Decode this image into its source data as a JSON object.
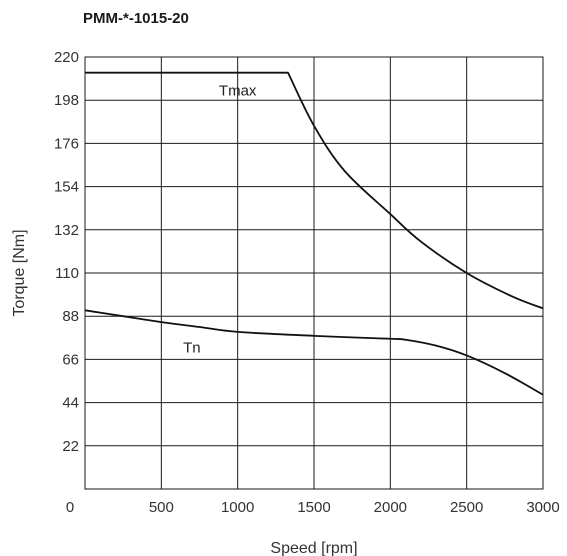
{
  "chart_data": {
    "type": "line",
    "title": "PMM-*-1015-20",
    "xlabel": "Speed [rpm]",
    "ylabel": "Torque [Nm]",
    "xlim": [
      0,
      3000
    ],
    "ylim": [
      0,
      220
    ],
    "x_ticks": [
      "0",
      "500",
      "1000",
      "1500",
      "2000",
      "2500",
      "3000"
    ],
    "y_ticks": [
      "220",
      "198",
      "176",
      "154",
      "132",
      "110",
      "88",
      "66",
      "44",
      "22"
    ],
    "grid": true,
    "series": [
      {
        "name": "Tmax",
        "x": [
          0,
          500,
          1000,
          1330,
          1500,
          1700,
          2000,
          2200,
          2500,
          2800,
          3000
        ],
        "y": [
          212,
          212,
          212,
          212,
          185,
          162,
          140,
          126,
          110,
          98,
          92
        ]
      },
      {
        "name": "Tn",
        "x": [
          0,
          250,
          500,
          750,
          1000,
          1500,
          2000,
          2100,
          2300,
          2500,
          2750,
          3000
        ],
        "y": [
          91,
          88,
          85,
          82.5,
          80,
          78,
          76.5,
          76,
          73,
          68,
          59,
          48
        ]
      }
    ]
  }
}
